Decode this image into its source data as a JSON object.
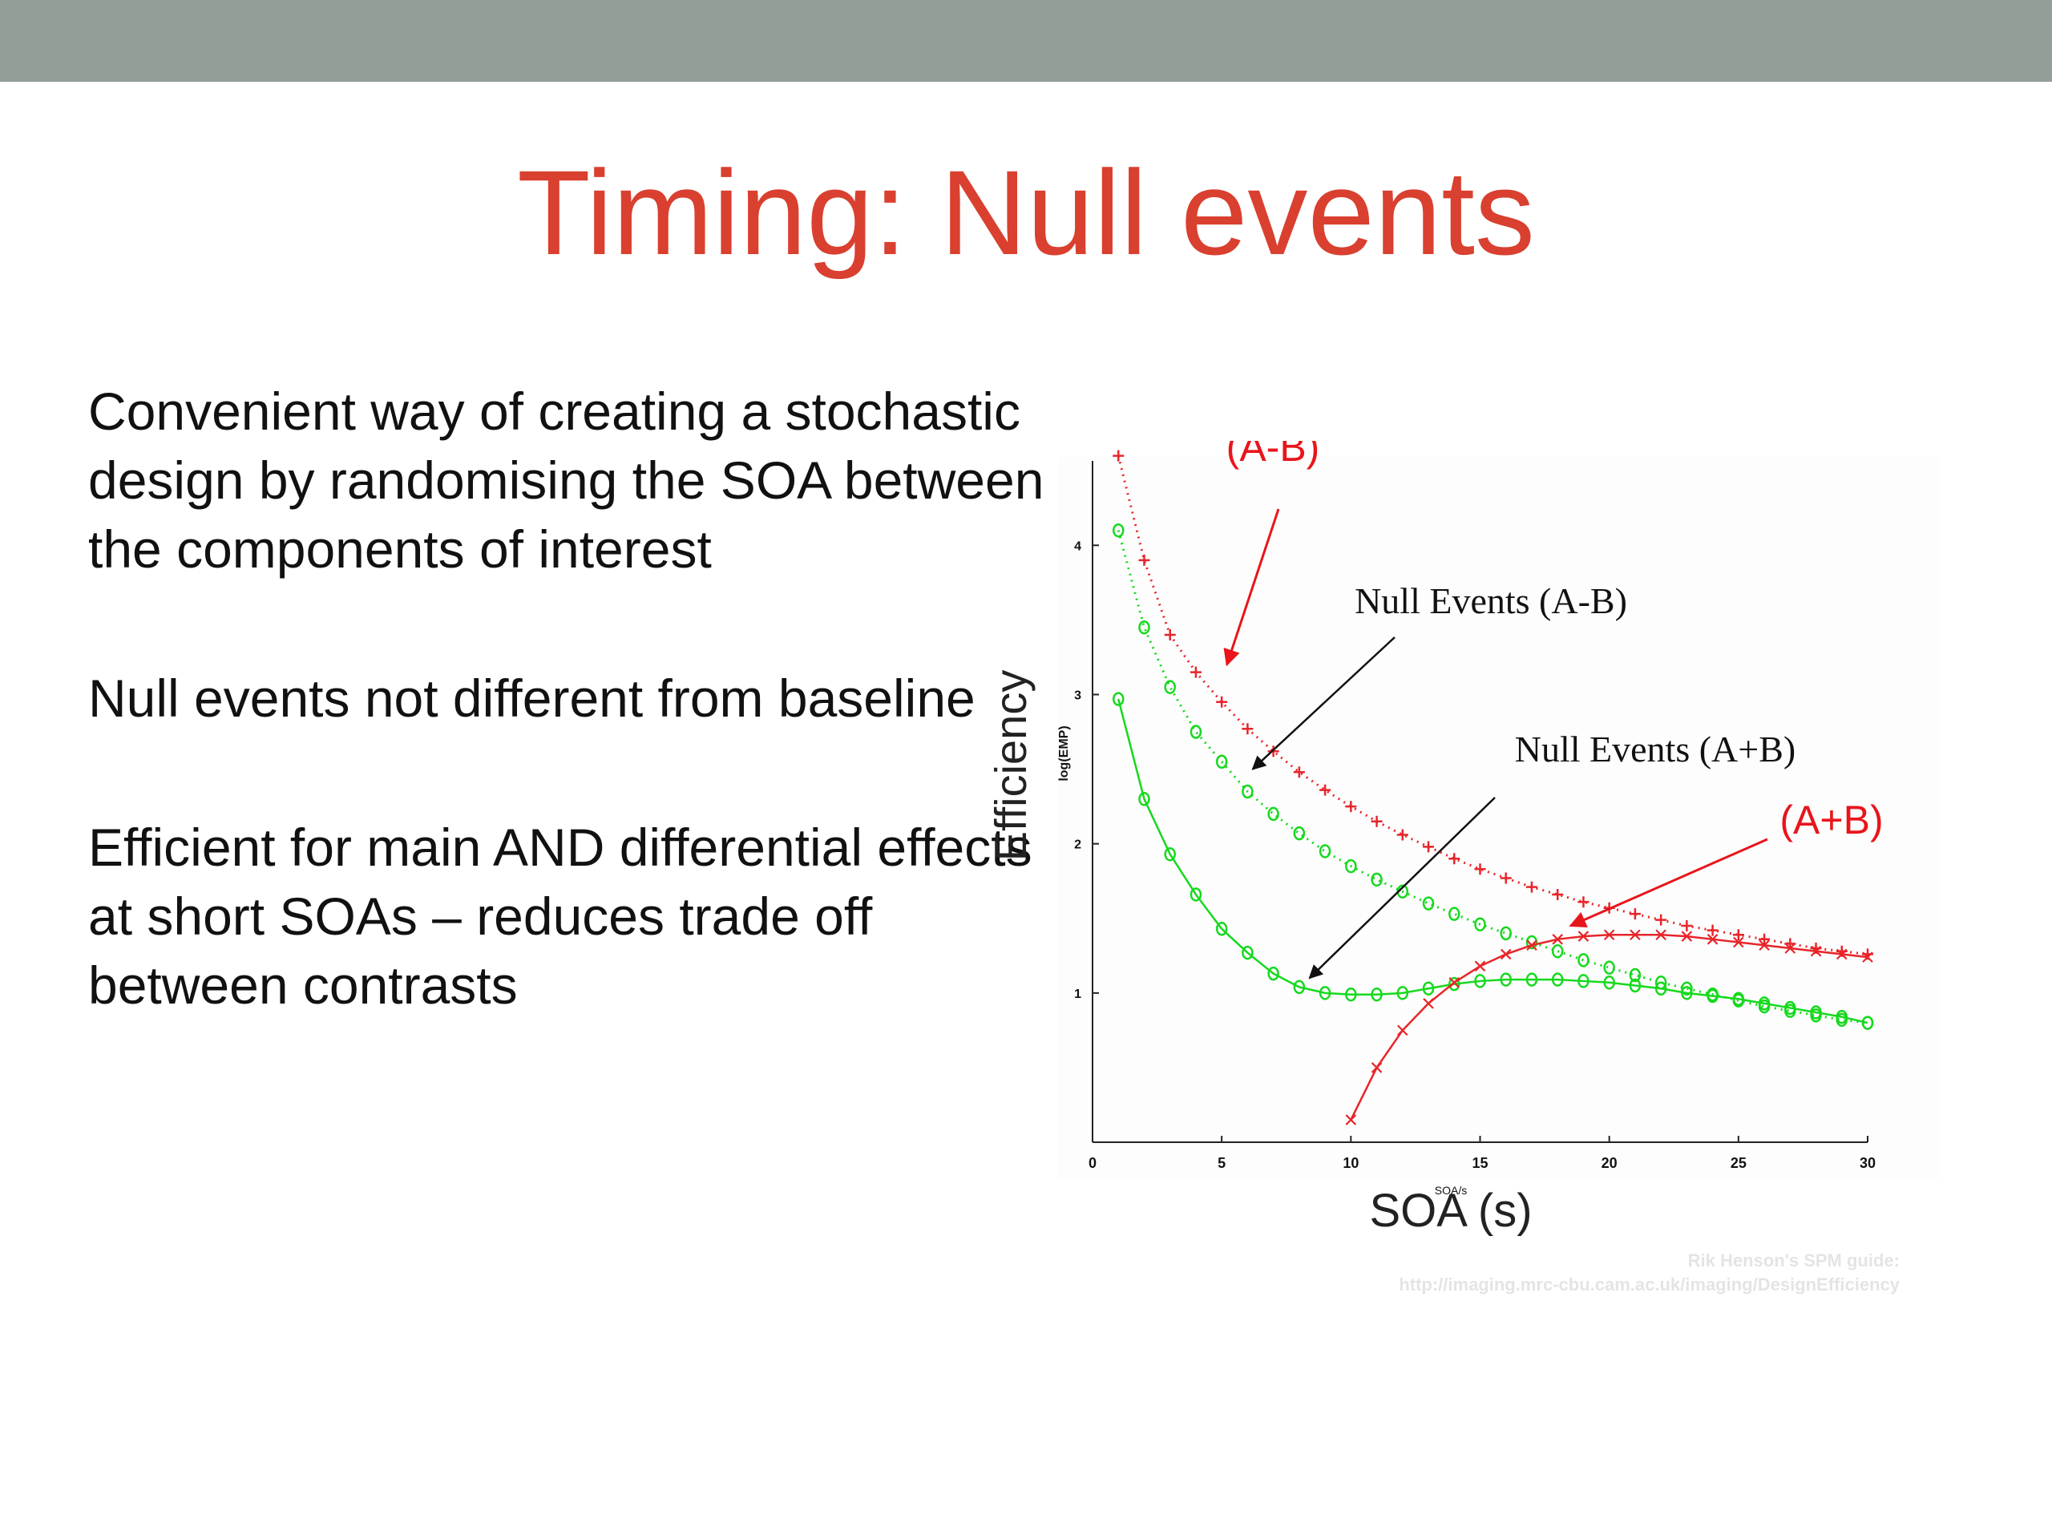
{
  "slide": {
    "title": "Timing: Null events",
    "bullets": [
      "Convenient way of creating a stochastic design by randomising the SOA between the components of interest",
      "Null events not different from baseline",
      "Efficient for main AND differential effects at short SOAs – reduces trade off between contrasts"
    ],
    "credit": {
      "line1": "Rik Henson's SPM guide:",
      "line2": "http://imaging.mrc-cbu.cam.ac.uk/imaging/DesignEfficiency"
    }
  },
  "colors": {
    "title": "#d9402f",
    "band": "#929f97",
    "red_series": "#e8252a",
    "green_series": "#16d91e",
    "annotation_red": "#e8151b",
    "arrow_black": "#111111"
  },
  "chart_data": {
    "type": "line",
    "xlabel": "SOA (s)",
    "xlabel_small": "SOA/s",
    "ylabel": "Efficiency",
    "ylabel_small": "log(EMP)",
    "xlim": [
      0,
      30
    ],
    "ylim": [
      0,
      4.7
    ],
    "xticks": [
      0,
      5,
      10,
      15,
      20,
      25,
      30
    ],
    "yticks": [
      1,
      2,
      3,
      4
    ],
    "grid": false,
    "series": [
      {
        "name": "(A-B)",
        "color": "#e8252a",
        "marker": "+",
        "dash": "2 6",
        "x": [
          1,
          2,
          3,
          4,
          5,
          6,
          7,
          8,
          9,
          10,
          11,
          12,
          13,
          14,
          15,
          16,
          17,
          18,
          19,
          20,
          21,
          22,
          23,
          24,
          25,
          26,
          27,
          28,
          29,
          30
        ],
        "y": [
          4.6,
          3.9,
          3.4,
          3.15,
          2.95,
          2.77,
          2.62,
          2.48,
          2.36,
          2.25,
          2.15,
          2.06,
          1.98,
          1.9,
          1.83,
          1.77,
          1.71,
          1.66,
          1.61,
          1.57,
          1.53,
          1.49,
          1.45,
          1.42,
          1.39,
          1.36,
          1.33,
          1.3,
          1.28,
          1.26
        ]
      },
      {
        "name": "Null Events (A-B)",
        "color": "#16d91e",
        "marker": "o",
        "dash": "2 6",
        "x": [
          1,
          2,
          3,
          4,
          5,
          6,
          7,
          8,
          9,
          10,
          11,
          12,
          13,
          14,
          15,
          16,
          17,
          18,
          19,
          20,
          21,
          22,
          23,
          24,
          25,
          26,
          27,
          28,
          29,
          30
        ],
        "y": [
          4.1,
          3.45,
          3.05,
          2.75,
          2.55,
          2.35,
          2.2,
          2.07,
          1.95,
          1.85,
          1.76,
          1.68,
          1.6,
          1.53,
          1.46,
          1.4,
          1.34,
          1.28,
          1.22,
          1.17,
          1.12,
          1.07,
          1.03,
          0.99,
          0.95,
          0.91,
          0.88,
          0.85,
          0.82,
          0.8
        ]
      },
      {
        "name": "Null Events (A+B)",
        "color": "#16d91e",
        "marker": "o",
        "dash": "",
        "x": [
          1,
          2,
          3,
          4,
          5,
          6,
          7,
          8,
          9,
          10,
          11,
          12,
          13,
          14,
          15,
          16,
          17,
          18,
          19,
          20,
          21,
          22,
          23,
          24,
          25,
          26,
          27,
          28,
          29,
          30
        ],
        "y": [
          2.97,
          2.3,
          1.93,
          1.66,
          1.43,
          1.27,
          1.13,
          1.04,
          1.0,
          0.99,
          0.99,
          1.0,
          1.03,
          1.06,
          1.08,
          1.09,
          1.09,
          1.09,
          1.08,
          1.07,
          1.05,
          1.03,
          1.0,
          0.98,
          0.96,
          0.93,
          0.9,
          0.87,
          0.84,
          0.8
        ]
      },
      {
        "name": "(A+B)",
        "color": "#e8252a",
        "marker": "x",
        "dash": "",
        "x": [
          10,
          11,
          12,
          13,
          14,
          15,
          16,
          17,
          18,
          19,
          20,
          21,
          22,
          23,
          24,
          25,
          26,
          27,
          28,
          29,
          30
        ],
        "y": [
          0.15,
          0.5,
          0.75,
          0.93,
          1.07,
          1.18,
          1.26,
          1.32,
          1.36,
          1.38,
          1.39,
          1.39,
          1.39,
          1.38,
          1.36,
          1.34,
          1.32,
          1.3,
          1.28,
          1.26,
          1.24
        ]
      }
    ],
    "annotations": [
      {
        "text": "(A-B)",
        "color": "#e8151b",
        "font": "sans",
        "arrow_to_x": 5.2,
        "arrow_to_y": 3.2
      },
      {
        "text": "Null Events (A-B)",
        "color": "#111111",
        "font": "serif",
        "arrow_to_x": 6.2,
        "arrow_to_y": 2.5
      },
      {
        "text": "Null Events (A+B)",
        "color": "#111111",
        "font": "serif",
        "arrow_to_x": 8.4,
        "arrow_to_y": 1.1
      },
      {
        "text": "(A+B)",
        "color": "#e8151b",
        "font": "sans",
        "arrow_to_x": 18.5,
        "arrow_to_y": 1.45
      }
    ]
  }
}
